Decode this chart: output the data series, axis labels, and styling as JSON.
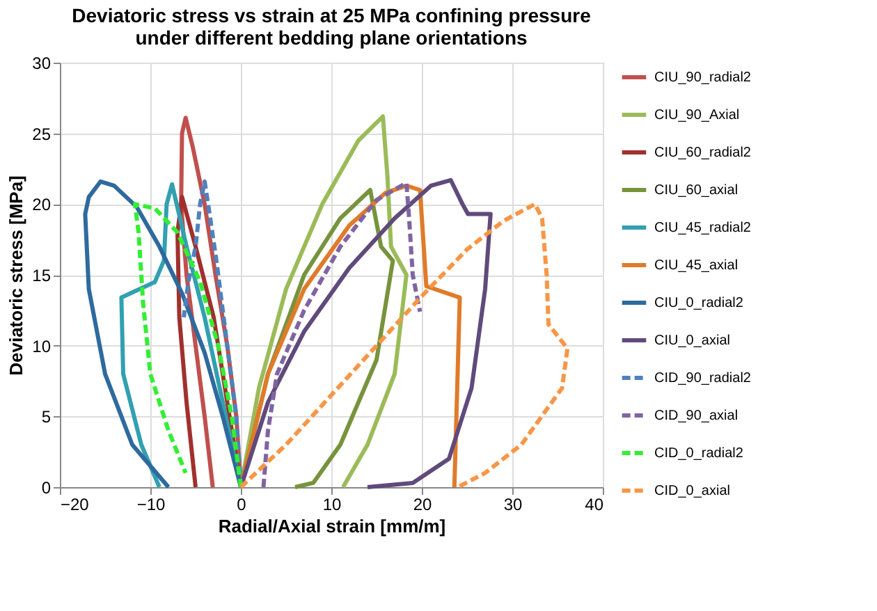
{
  "chart_data": {
    "type": "line",
    "title": [
      "Deviatoric stress vs strain at 25 MPa confining pressure",
      "under different bedding plane orientations"
    ],
    "xlabel": "Radial/Axial strain [mm/m]",
    "ylabel": "Deviatoric  stress [MPa]",
    "xlim": [
      -20,
      40
    ],
    "xticks": [
      -20,
      -10,
      0,
      10,
      20,
      30,
      40
    ],
    "ylim": [
      0,
      30
    ],
    "yticks": [
      0,
      5,
      10,
      15,
      20,
      25,
      30
    ],
    "grid": true,
    "legend": "right",
    "marker": "none",
    "series": [
      {
        "name": "CIU_90_radial2",
        "color": "#c0504d",
        "line_style": "solid",
        "x": [
          0,
          -0.5,
          -1.5,
          -2.8,
          -4,
          -5.3,
          -6.1,
          -6.5,
          -6.6,
          -6,
          -5,
          -4,
          -3.1
        ],
        "values": [
          0,
          5,
          10,
          15,
          20,
          24,
          26.1,
          25,
          20,
          15,
          10,
          5,
          0
        ]
      },
      {
        "name": "CIU_90_Axial",
        "color": "#9bbb59",
        "line_style": "solid",
        "x": [
          0,
          2,
          5,
          9,
          13,
          15.7,
          16.2,
          16.6,
          18.3,
          17,
          14,
          11.3
        ],
        "values": [
          0,
          7,
          14,
          20,
          24.5,
          26.2,
          22,
          17,
          15,
          8,
          3,
          0
        ]
      },
      {
        "name": "CIU_60_radial2",
        "color": "#a0302e",
        "line_style": "solid",
        "x": [
          0,
          -1.5,
          -3,
          -5,
          -6.5,
          -7,
          -6.8,
          -6,
          -5
        ],
        "values": [
          0,
          6,
          12,
          17,
          20.5,
          18,
          12,
          6,
          0
        ]
      },
      {
        "name": "CIU_60_axial",
        "color": "#77933c",
        "line_style": "solid",
        "x": [
          0,
          3,
          7,
          11,
          14.3,
          15.5,
          16.8,
          15,
          11,
          8,
          6
        ],
        "values": [
          0,
          8,
          15,
          19,
          21,
          17,
          16,
          9,
          3,
          0.3,
          0
        ]
      },
      {
        "name": "CIU_45_radial2",
        "color": "#31a0b0",
        "line_style": "solid",
        "x": [
          0,
          -2,
          -4,
          -6,
          -7.6,
          -8.2,
          -8.5,
          -9.5,
          -13.2,
          -13,
          -11,
          -9
        ],
        "values": [
          0,
          6,
          12,
          17,
          21.4,
          20,
          16,
          14.5,
          13.4,
          8,
          3,
          0
        ]
      },
      {
        "name": "CIU_45_axial",
        "color": "#e07b2a",
        "line_style": "solid",
        "x": [
          0,
          3,
          7,
          12,
          16,
          18.3,
          19.8,
          20.5,
          24.2,
          23.6
        ],
        "values": [
          0,
          8,
          14,
          18.5,
          20.8,
          21.3,
          21,
          14.2,
          13.4,
          0
        ]
      },
      {
        "name": "CIU_0_radial2",
        "color": "#2e6a9e",
        "line_style": "solid",
        "x": [
          0,
          -2,
          -4,
          -6.5,
          -9,
          -11.5,
          -14,
          -15.5,
          -16.8,
          -17.2,
          -16.8,
          -15,
          -12,
          -8
        ],
        "values": [
          0,
          5,
          9.5,
          13.7,
          17,
          19.8,
          21.3,
          21.6,
          20.5,
          19.3,
          14,
          8,
          3,
          0
        ]
      },
      {
        "name": "CIU_0_axial",
        "color": "#604a7b",
        "line_style": "solid",
        "x": [
          0,
          3,
          7,
          12,
          17,
          21,
          23.2,
          24.5,
          25.1,
          27.6,
          27,
          25.5,
          23,
          19,
          14
        ],
        "values": [
          0,
          6,
          11,
          15.5,
          19,
          21.3,
          21.7,
          20,
          19.3,
          19.3,
          14,
          7,
          2,
          0.3,
          0
        ]
      },
      {
        "name": "CID_90_radial2",
        "color": "#4f81bd",
        "line_style": "dashed",
        "x": [
          0,
          -0.5,
          -1.5,
          -2.7,
          -3.5,
          -4,
          -4.5,
          -5,
          -5.8,
          -6.3
        ],
        "values": [
          0,
          5,
          10,
          16,
          19.5,
          21.6,
          20,
          17,
          14.5,
          12
        ]
      },
      {
        "name": "CID_90_axial",
        "color": "#8064a2",
        "line_style": "dashed",
        "x": [
          2.5,
          3,
          4,
          7,
          11,
          15,
          18.3,
          18.6,
          19,
          19.8
        ],
        "values": [
          0,
          4,
          8,
          12.5,
          17,
          20.3,
          21.5,
          19,
          15,
          12.4
        ]
      },
      {
        "name": "CID_0_radial2",
        "color": "#33ee33",
        "line_style": "dashed",
        "x": [
          0,
          -1,
          -2.5,
          -4.5,
          -7,
          -9.5,
          -11.7,
          -11.3,
          -10.8,
          -10,
          -8,
          -6.1
        ],
        "values": [
          0,
          5,
          10,
          14.5,
          18,
          19.7,
          20,
          18,
          13,
          8,
          4,
          1
        ]
      },
      {
        "name": "CID_0_axial",
        "color": "#f79646",
        "line_style": "dashed",
        "x": [
          0,
          5,
          10,
          15,
          20,
          25,
          29,
          32.5,
          33.3,
          33.8,
          34,
          36.1,
          35.5,
          31,
          27,
          24
        ],
        "values": [
          0,
          3,
          6.5,
          10,
          13.5,
          16.8,
          18.8,
          20,
          19,
          15,
          11.5,
          9.8,
          7,
          3,
          1,
          0
        ]
      }
    ]
  }
}
